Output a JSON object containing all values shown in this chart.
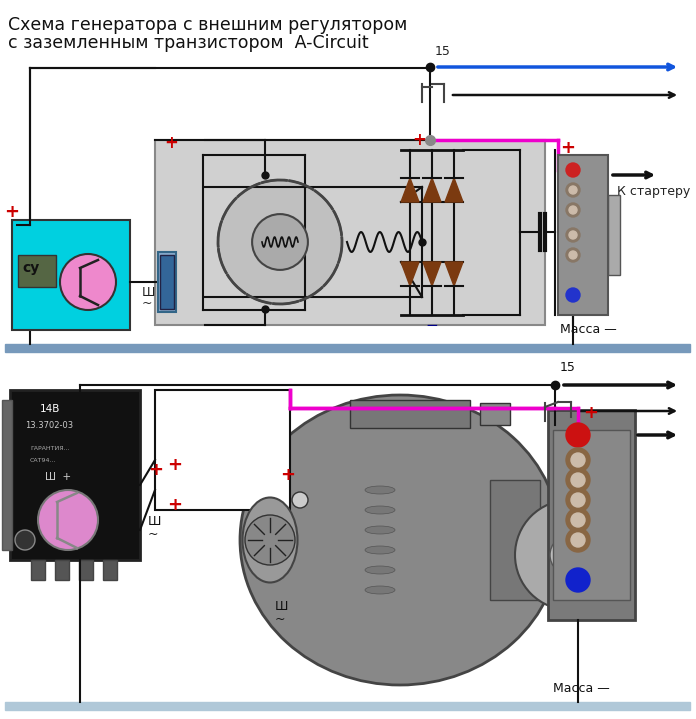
{
  "title_line1": "Схема генератора с внешним регулятором",
  "title_line2": "с заземленным транзистором  A-Circuit",
  "title_fontsize": 12.5,
  "bg_color": "#ffffff",
  "wire_black": "#111111",
  "wire_magenta": "#ee00cc",
  "wire_blue": "#1155dd",
  "plus_color": "#cc0000",
  "diode_color": "#7B3A10",
  "ground_bar": "#7799bb",
  "reg_cyan": "#00d0e0",
  "label_15": "15",
  "label_massa": "Масса",
  "label_starter": "К стартеру",
  "label_cu": "су",
  "label_sh": "Ш",
  "genbox_fill": "#d0d0d0",
  "genbox_edge": "#888888",
  "term_fill": "#909090",
  "term_edge": "#555555"
}
